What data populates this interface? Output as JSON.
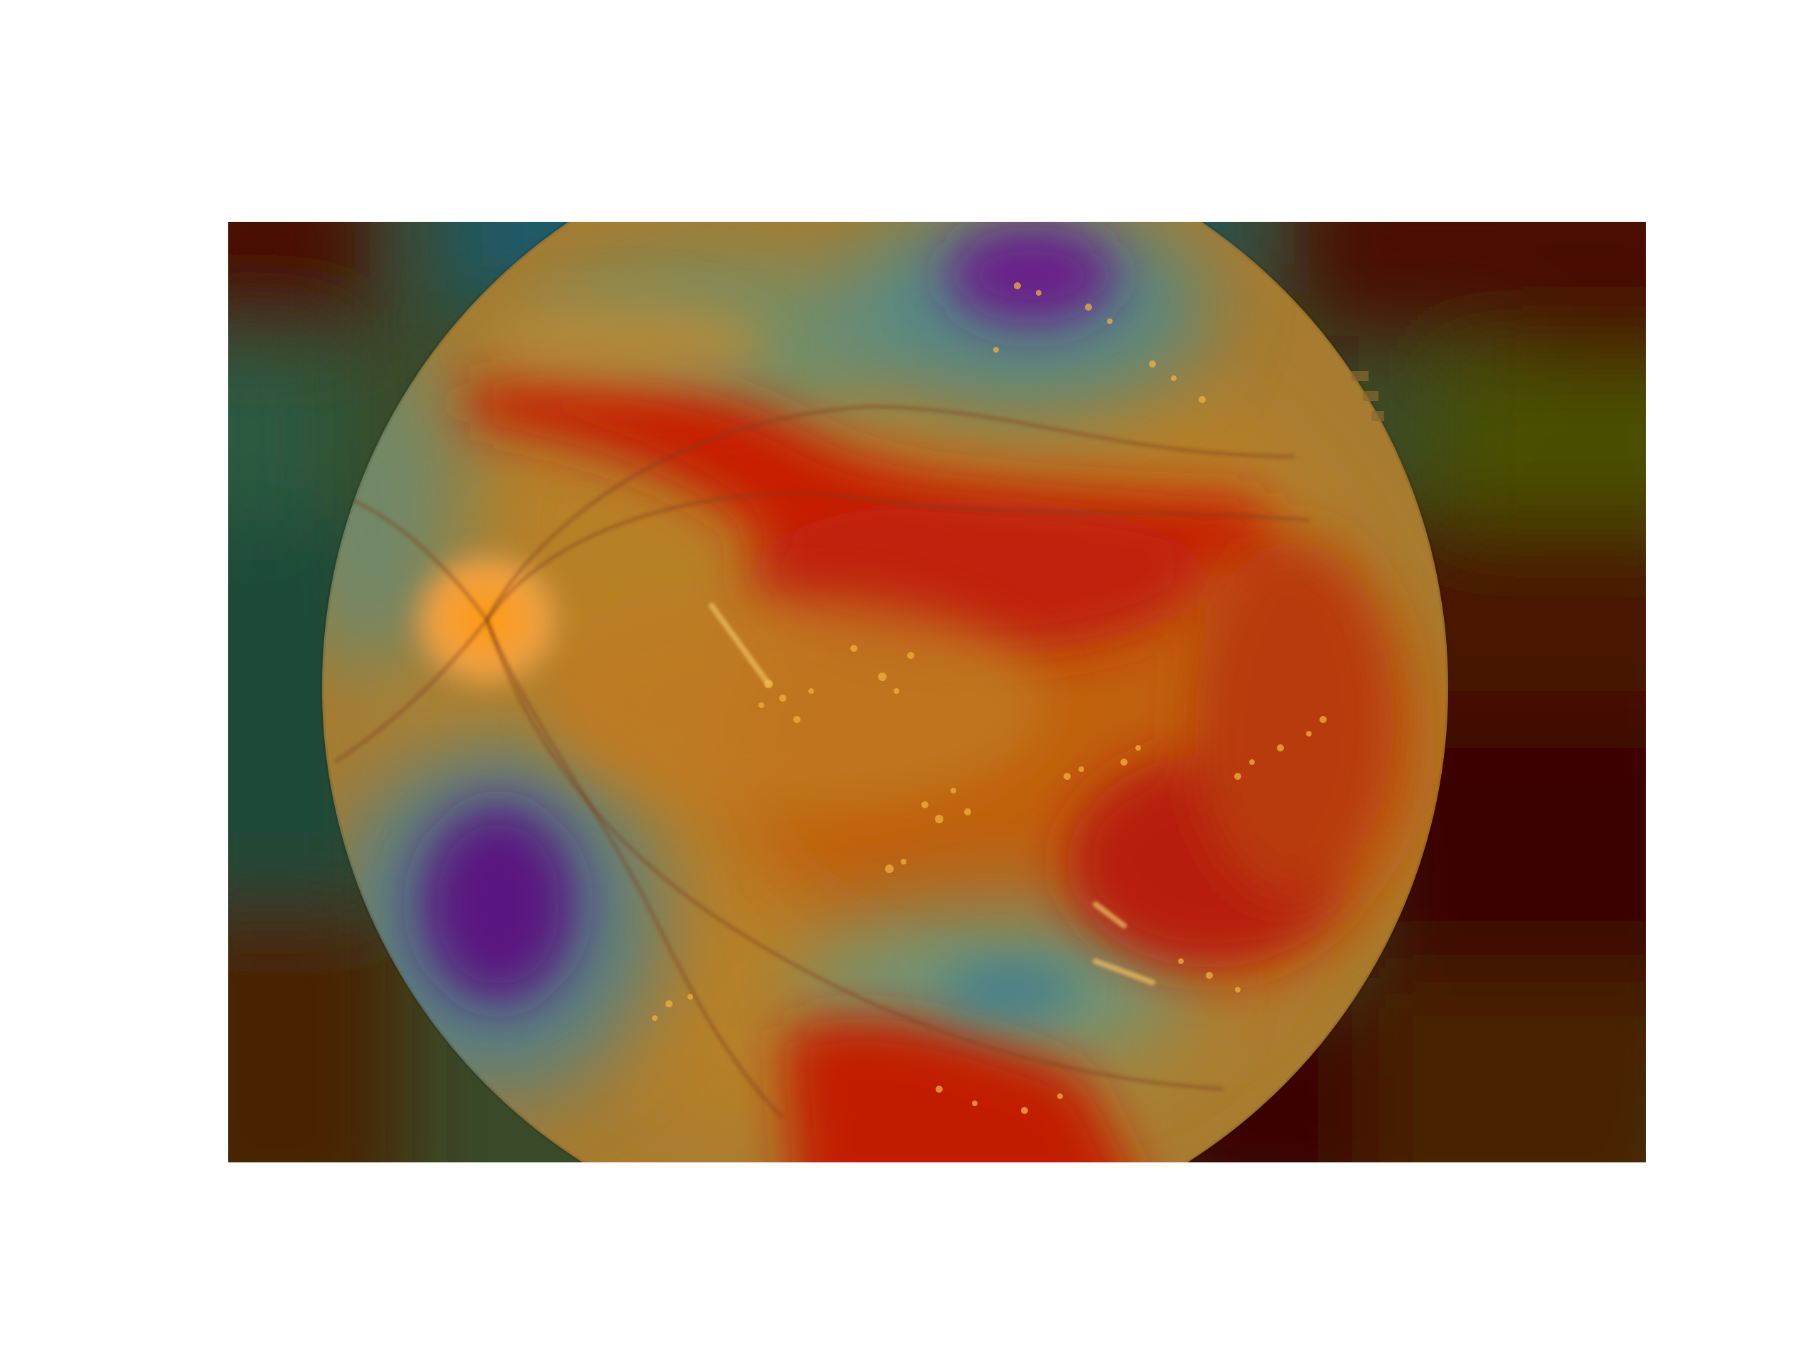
{
  "figure": {
    "kind": "retinal-fundus-heatmap-overlay",
    "colormap": "jet",
    "background_color": "#ffffff",
    "colors": {
      "fundus_base": "#b07a2a",
      "optic_disc": "#f39a1c",
      "exudate": "#f0b040",
      "vessel": "#7a3a10",
      "hot": "#c81e06",
      "cold": "#5a1a8a",
      "cool": "#3a7a8a",
      "dark_red": "#460000",
      "dark_green": "#2a4a30"
    },
    "activation_regions": [
      {
        "name": "superior-arcade-band",
        "level": "high"
      },
      {
        "name": "inferior-temporal-region",
        "level": "high"
      },
      {
        "name": "superior-pole",
        "level": "low"
      },
      {
        "name": "inferior-nasal",
        "level": "low"
      },
      {
        "name": "inferior-temporal-pocket",
        "level": "low"
      }
    ]
  }
}
